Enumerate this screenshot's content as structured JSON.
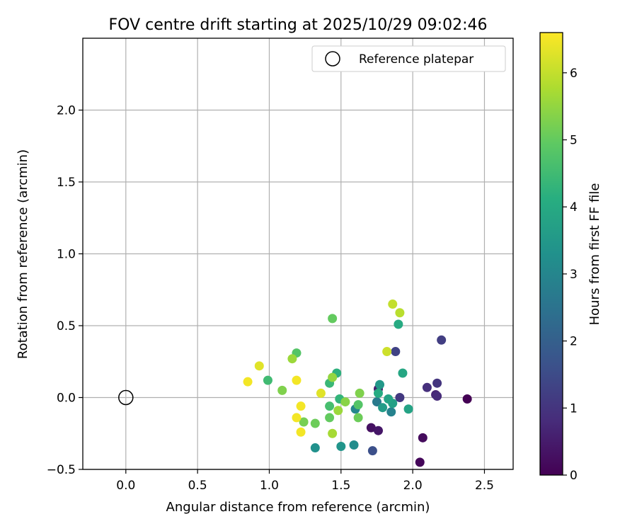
{
  "chart_data": {
    "type": "scatter",
    "title": "FOV centre drift starting at 2025/10/29 09:02:46",
    "xlabel": "Angular distance from reference (arcmin)",
    "ylabel": "Rotation from reference (arcmin)",
    "xlim": [
      -0.3,
      2.7
    ],
    "ylim": [
      -0.5,
      2.5
    ],
    "xticks": [
      0.0,
      0.5,
      1.0,
      1.5,
      2.0,
      2.5
    ],
    "xtick_labels": [
      "0.0",
      "0.5",
      "1.0",
      "1.5",
      "2.0",
      "2.5"
    ],
    "yticks": [
      -0.5,
      0.0,
      0.5,
      1.0,
      1.5,
      2.0
    ],
    "ytick_labels": [
      "−0.5",
      "0.0",
      "0.5",
      "1.0",
      "1.5",
      "2.0"
    ],
    "grid": true,
    "legend": {
      "position": "upper-right",
      "entries": [
        "Reference platepar"
      ]
    },
    "reference": {
      "x": 0.0,
      "y": 0.0,
      "label": "Reference platepar"
    },
    "colorbar": {
      "label": "Hours from first FF file",
      "min": 0,
      "max": 6.6,
      "ticks": [
        0,
        1,
        2,
        3,
        4,
        5,
        6
      ],
      "tick_labels": [
        "0",
        "1",
        "2",
        "3",
        "4",
        "5",
        "6"
      ],
      "colormap": "viridis"
    },
    "points": [
      {
        "x": 2.38,
        "y": -0.01,
        "hours": 0.0
      },
      {
        "x": 2.05,
        "y": -0.45,
        "hours": 0.1
      },
      {
        "x": 2.07,
        "y": -0.28,
        "hours": 0.2
      },
      {
        "x": 1.71,
        "y": -0.21,
        "hours": 0.3
      },
      {
        "x": 1.76,
        "y": -0.23,
        "hours": 0.4
      },
      {
        "x": 1.76,
        "y": 0.06,
        "hours": 0.5
      },
      {
        "x": 2.16,
        "y": 0.02,
        "hours": 0.7
      },
      {
        "x": 2.17,
        "y": 0.01,
        "hours": 0.8
      },
      {
        "x": 2.1,
        "y": 0.07,
        "hours": 0.9
      },
      {
        "x": 2.17,
        "y": 0.1,
        "hours": 1.0
      },
      {
        "x": 1.91,
        "y": 0.0,
        "hours": 1.1
      },
      {
        "x": 2.2,
        "y": 0.4,
        "hours": 1.2
      },
      {
        "x": 1.88,
        "y": 0.32,
        "hours": 1.3
      },
      {
        "x": 1.72,
        "y": -0.37,
        "hours": 1.6
      },
      {
        "x": 1.75,
        "y": -0.03,
        "hours": 2.7
      },
      {
        "x": 1.85,
        "y": -0.1,
        "hours": 2.9
      },
      {
        "x": 1.6,
        "y": -0.08,
        "hours": 3.0
      },
      {
        "x": 1.59,
        "y": -0.33,
        "hours": 3.2
      },
      {
        "x": 1.32,
        "y": -0.35,
        "hours": 3.3
      },
      {
        "x": 1.5,
        "y": -0.34,
        "hours": 3.4
      },
      {
        "x": 1.77,
        "y": 0.09,
        "hours": 3.5
      },
      {
        "x": 1.79,
        "y": -0.07,
        "hours": 3.6
      },
      {
        "x": 1.86,
        "y": -0.04,
        "hours": 3.7
      },
      {
        "x": 1.83,
        "y": -0.01,
        "hours": 3.8
      },
      {
        "x": 1.97,
        "y": -0.08,
        "hours": 3.8
      },
      {
        "x": 1.93,
        "y": 0.17,
        "hours": 3.9
      },
      {
        "x": 1.9,
        "y": 0.51,
        "hours": 4.0
      },
      {
        "x": 1.76,
        "y": 0.03,
        "hours": 4.0
      },
      {
        "x": 1.47,
        "y": 0.17,
        "hours": 4.2
      },
      {
        "x": 1.49,
        "y": -0.01,
        "hours": 4.3
      },
      {
        "x": 1.42,
        "y": 0.1,
        "hours": 4.4
      },
      {
        "x": 0.99,
        "y": 0.12,
        "hours": 4.5
      },
      {
        "x": 1.42,
        "y": -0.06,
        "hours": 4.6
      },
      {
        "x": 1.19,
        "y": 0.31,
        "hours": 4.8
      },
      {
        "x": 1.62,
        "y": -0.05,
        "hours": 4.8
      },
      {
        "x": 1.44,
        "y": 0.55,
        "hours": 5.0
      },
      {
        "x": 1.42,
        "y": -0.14,
        "hours": 5.0
      },
      {
        "x": 1.62,
        "y": -0.14,
        "hours": 5.1
      },
      {
        "x": 1.32,
        "y": -0.18,
        "hours": 5.1
      },
      {
        "x": 1.24,
        "y": -0.17,
        "hours": 5.2
      },
      {
        "x": 1.09,
        "y": 0.05,
        "hours": 5.3
      },
      {
        "x": 1.63,
        "y": 0.03,
        "hours": 5.3
      },
      {
        "x": 1.53,
        "y": -0.03,
        "hours": 5.4
      },
      {
        "x": 1.44,
        "y": 0.14,
        "hours": 5.5
      },
      {
        "x": 1.16,
        "y": 0.27,
        "hours": 5.6
      },
      {
        "x": 1.48,
        "y": -0.09,
        "hours": 5.6
      },
      {
        "x": 1.44,
        "y": -0.25,
        "hours": 5.7
      },
      {
        "x": 1.91,
        "y": 0.59,
        "hours": 5.9
      },
      {
        "x": 1.86,
        "y": 0.65,
        "hours": 6.0
      },
      {
        "x": 1.82,
        "y": 0.32,
        "hours": 6.1
      },
      {
        "x": 0.93,
        "y": 0.22,
        "hours": 6.3
      },
      {
        "x": 1.36,
        "y": 0.03,
        "hours": 6.3
      },
      {
        "x": 0.85,
        "y": 0.11,
        "hours": 6.5
      },
      {
        "x": 1.19,
        "y": 0.12,
        "hours": 6.5
      },
      {
        "x": 1.22,
        "y": -0.06,
        "hours": 6.5
      },
      {
        "x": 1.19,
        "y": -0.14,
        "hours": 6.5
      },
      {
        "x": 1.22,
        "y": -0.24,
        "hours": 6.5
      }
    ]
  }
}
